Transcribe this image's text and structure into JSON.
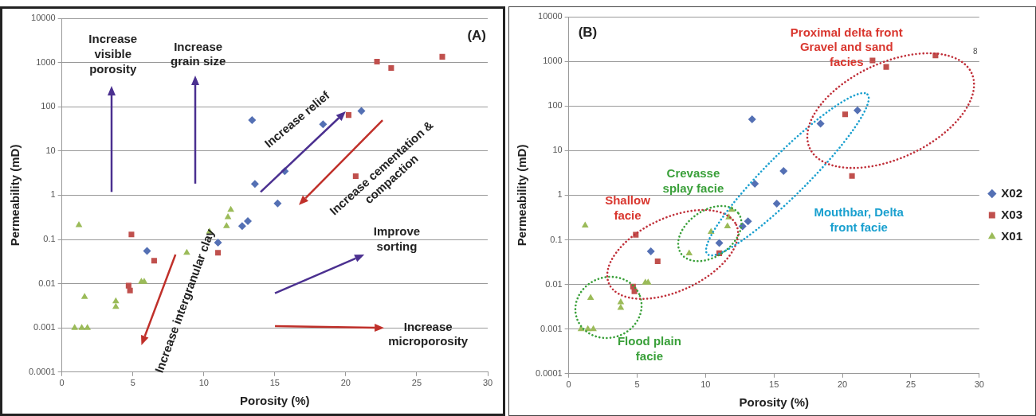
{
  "chart_data": [
    {
      "type": "scatter",
      "title": "(A)",
      "xlabel": "Porosity (%)",
      "ylabel": "Permeability (mD)",
      "xlim": [
        0,
        30
      ],
      "xticks": [
        0,
        5,
        10,
        15,
        20,
        25,
        30
      ],
      "ylim": [
        0.0001,
        10000
      ],
      "yticks": [
        0.0001,
        0.001,
        0.01,
        0.1,
        1,
        10,
        100,
        1000,
        10000
      ],
      "log": "y",
      "grid": "y",
      "legend": false,
      "series": [
        {
          "color": "#5470b4",
          "marker": "diamond",
          "x": [
            6.0,
            11.0,
            12.7,
            13.1,
            13.4,
            13.6,
            15.2,
            15.7,
            18.4,
            21.1
          ],
          "values": [
            0.055,
            0.085,
            0.2,
            0.26,
            50,
            1.8,
            0.65,
            3.5,
            40,
            80
          ]
        },
        {
          "color": "#c0504d",
          "marker": "square",
          "x": [
            4.9,
            6.5,
            4.7,
            4.8,
            11.0,
            20.2,
            20.7,
            22.2,
            23.2,
            26.8
          ],
          "values": [
            0.13,
            0.033,
            0.009,
            0.007,
            0.05,
            65,
            2.7,
            1050,
            750,
            1350
          ]
        },
        {
          "color": "#9bbb59",
          "marker": "triangle",
          "x": [
            1.2,
            0.9,
            1.4,
            1.8,
            1.6,
            3.8,
            3.8,
            5.6,
            5.8,
            8.8,
            10.4,
            11.6,
            11.7,
            11.9
          ],
          "values": [
            0.21,
            0.001,
            0.001,
            0.001,
            0.005,
            0.004,
            0.003,
            0.011,
            0.011,
            0.05,
            0.15,
            0.2,
            0.32,
            0.47
          ]
        }
      ],
      "annotations": [
        "Increase visible porosity",
        "Increase grain size",
        "Increase relief",
        "Increase cementation & compaction",
        "Improve sorting",
        "Increase microporosity",
        "Increase intergranular clay"
      ]
    },
    {
      "type": "scatter",
      "title": "(B)",
      "xlabel": "Porosity (%)",
      "ylabel": "Permeability (mD)",
      "xlim": [
        0,
        30
      ],
      "xticks": [
        0,
        5,
        10,
        15,
        20,
        25,
        30
      ],
      "ylim": [
        0.0001,
        10000
      ],
      "yticks": [
        0.0001,
        0.001,
        0.01,
        0.1,
        1,
        10,
        100,
        1000,
        10000
      ],
      "log": "y",
      "grid": "y",
      "legend": "right",
      "series": [
        {
          "name": "X02",
          "color": "#5470b4",
          "marker": "diamond",
          "x": [
            6.0,
            11.0,
            12.7,
            13.1,
            13.4,
            13.6,
            15.2,
            15.7,
            18.4,
            21.1
          ],
          "values": [
            0.055,
            0.085,
            0.2,
            0.26,
            50,
            1.8,
            0.65,
            3.5,
            40,
            80
          ]
        },
        {
          "name": "X03",
          "color": "#c0504d",
          "marker": "square",
          "x": [
            4.9,
            6.5,
            4.7,
            4.8,
            11.0,
            20.2,
            20.7,
            22.2,
            23.2,
            26.8
          ],
          "values": [
            0.13,
            0.033,
            0.009,
            0.007,
            0.05,
            65,
            2.7,
            1050,
            750,
            1350
          ]
        },
        {
          "name": "X01",
          "color": "#9bbb59",
          "marker": "triangle",
          "x": [
            1.2,
            0.9,
            1.4,
            1.8,
            1.6,
            3.8,
            3.8,
            5.6,
            5.8,
            8.8,
            10.4,
            11.6,
            11.7,
            11.9
          ],
          "values": [
            0.21,
            0.001,
            0.001,
            0.001,
            0.005,
            0.004,
            0.003,
            0.011,
            0.011,
            0.05,
            0.15,
            0.2,
            0.32,
            0.47
          ]
        }
      ],
      "annotations": [
        "Proximal delta front Gravel and sand facies",
        "Shallow facie",
        "Crevasse splay facie",
        "Flood plain facie",
        "Mouthbar, Delta front facie",
        "8"
      ]
    }
  ]
}
